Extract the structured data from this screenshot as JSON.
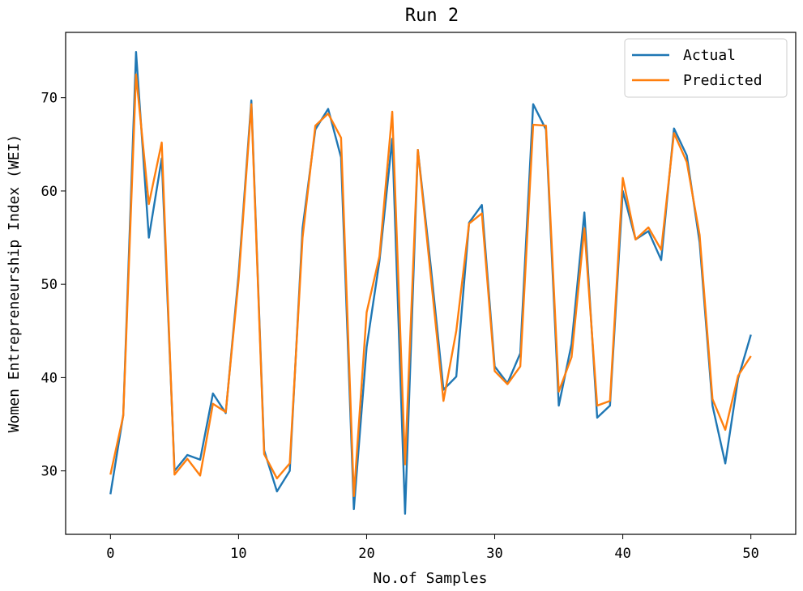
{
  "chart_data": {
    "type": "line",
    "title": "Run 2",
    "xlabel": "No.of Samples",
    "ylabel": "Women Entrepreneurship Index (WEI)",
    "xlim": [
      -3.5,
      53.5
    ],
    "ylim": [
      23.2,
      77.0
    ],
    "xticks": [
      0,
      10,
      20,
      30,
      40,
      50
    ],
    "yticks": [
      30,
      40,
      50,
      60,
      70
    ],
    "grid": false,
    "legend_position": "top-right",
    "x": [
      0,
      1,
      2,
      3,
      4,
      5,
      6,
      7,
      8,
      9,
      10,
      11,
      12,
      13,
      14,
      15,
      16,
      17,
      18,
      19,
      20,
      21,
      22,
      23,
      24,
      25,
      26,
      27,
      28,
      29,
      30,
      31,
      32,
      33,
      34,
      35,
      36,
      37,
      38,
      39,
      40,
      41,
      42,
      43,
      44,
      45,
      46,
      47,
      48,
      49,
      50
    ],
    "series": [
      {
        "name": "Actual",
        "color": "#1f77b4",
        "values": [
          27.5,
          36.0,
          74.9,
          55.0,
          63.5,
          30.0,
          31.7,
          31.2,
          38.3,
          36.2,
          51.0,
          69.7,
          32.2,
          27.8,
          30.0,
          56.0,
          66.6,
          68.8,
          63.6,
          25.9,
          43.3,
          52.5,
          65.6,
          25.4,
          64.4,
          52.0,
          38.7,
          40.1,
          56.6,
          58.5,
          41.2,
          39.4,
          42.6,
          69.3,
          66.6,
          37.0,
          43.6,
          57.7,
          35.7,
          37.0,
          60.0,
          54.8,
          55.7,
          52.6,
          66.7,
          63.8,
          54.5,
          37.0,
          30.8,
          39.9,
          44.6
        ]
      },
      {
        "name": "Predicted",
        "color": "#ff7f0e",
        "values": [
          29.6,
          35.9,
          72.5,
          58.6,
          65.2,
          29.6,
          31.3,
          29.5,
          37.2,
          36.3,
          50.4,
          69.3,
          31.8,
          29.2,
          30.8,
          55.0,
          67.0,
          68.3,
          65.7,
          27.3,
          47.0,
          53.0,
          68.5,
          30.7,
          64.4,
          51.0,
          37.5,
          45.0,
          56.5,
          57.6,
          40.7,
          39.3,
          41.2,
          67.1,
          67.0,
          38.5,
          42.2,
          56.0,
          37.0,
          37.5,
          61.4,
          54.8,
          56.1,
          53.7,
          66.2,
          63.1,
          55.3,
          37.7,
          34.4,
          40.2,
          42.3
        ]
      }
    ]
  }
}
